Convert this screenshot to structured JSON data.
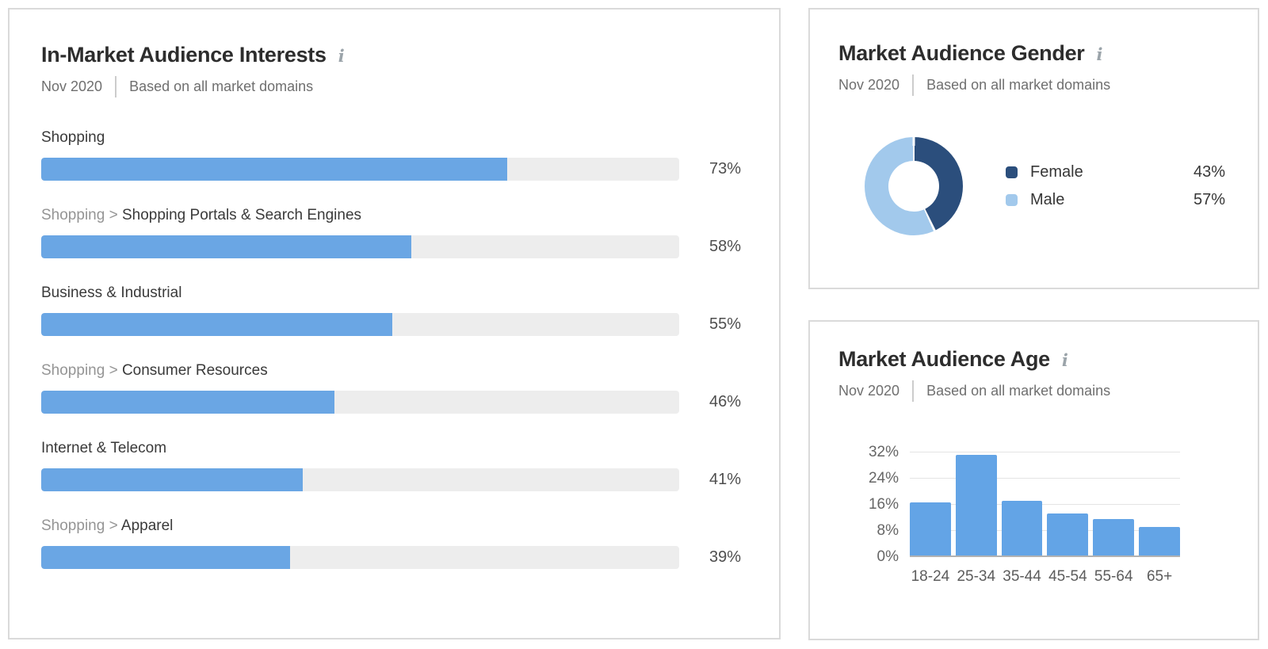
{
  "panels": {
    "interests": {
      "title": "In-Market Audience Interests",
      "date": "Nov 2020",
      "scope": "Based on all market domains",
      "bar_color": "#6aa6e4",
      "track_color": "#ededed",
      "rows": [
        {
          "prefix": "",
          "label": "Shopping",
          "value": 73,
          "display": "73%"
        },
        {
          "prefix": "Shopping > ",
          "label": "Shopping Portals & Search Engines",
          "value": 58,
          "display": "58%"
        },
        {
          "prefix": "",
          "label": "Business & Industrial",
          "value": 55,
          "display": "55%"
        },
        {
          "prefix": "Shopping > ",
          "label": "Consumer Resources",
          "value": 46,
          "display": "46%"
        },
        {
          "prefix": "",
          "label": "Internet & Telecom",
          "value": 41,
          "display": "41%"
        },
        {
          "prefix": "Shopping > ",
          "label": "Apparel",
          "value": 39,
          "display": "39%"
        }
      ]
    },
    "gender": {
      "title": "Market Audience Gender",
      "date": "Nov 2020",
      "scope": "Based on all market domains",
      "legend": [
        {
          "label": "Female",
          "value": 43,
          "display": "43%",
          "color": "#2b4e7c"
        },
        {
          "label": "Male",
          "value": 57,
          "display": "57%",
          "color": "#a2c9ec"
        }
      ]
    },
    "age": {
      "title": "Market Audience Age",
      "date": "Nov 2020",
      "scope": "Based on all market domains",
      "bar_color": "#63a4e6",
      "ymax": 32,
      "yticks": [
        "0%",
        "8%",
        "16%",
        "24%",
        "32%"
      ],
      "categories": [
        "18-24",
        "25-34",
        "35-44",
        "45-54",
        "55-64",
        "65+"
      ],
      "values": [
        16.8,
        31.3,
        17.2,
        13.3,
        11.6,
        9.3
      ]
    }
  },
  "chart_data": [
    {
      "type": "bar",
      "orientation": "horizontal",
      "title": "In-Market Audience Interests",
      "subtitle": "Nov 2020 | Based on all market domains",
      "categories": [
        "Shopping",
        "Shopping > Shopping Portals & Search Engines",
        "Business & Industrial",
        "Shopping > Consumer Resources",
        "Internet & Telecom",
        "Shopping > Apparel"
      ],
      "values": [
        73,
        58,
        55,
        46,
        41,
        39
      ],
      "unit": "%",
      "xlim": [
        0,
        100
      ],
      "bar_color": "#6aa6e4",
      "grid": false,
      "data_labels": [
        "73%",
        "58%",
        "55%",
        "46%",
        "41%",
        "39%"
      ]
    },
    {
      "type": "pie",
      "variant": "donut",
      "title": "Market Audience Gender",
      "subtitle": "Nov 2020 | Based on all market domains",
      "categories": [
        "Female",
        "Male"
      ],
      "values": [
        43,
        57
      ],
      "unit": "%",
      "colors": [
        "#2b4e7c",
        "#a2c9ec"
      ],
      "legend_position": "right",
      "start_angle_deg": 0,
      "direction": "clockwise"
    },
    {
      "type": "bar",
      "orientation": "vertical",
      "title": "Market Audience Age",
      "subtitle": "Nov 2020 | Based on all market domains",
      "categories": [
        "18-24",
        "25-34",
        "35-44",
        "45-54",
        "55-64",
        "65+"
      ],
      "values": [
        16.8,
        31.3,
        17.2,
        13.3,
        11.6,
        9.3
      ],
      "unit": "%",
      "ylim": [
        0,
        32
      ],
      "yticks": [
        "0%",
        "8%",
        "16%",
        "24%",
        "32%"
      ],
      "grid": true,
      "bar_color": "#63a4e6"
    }
  ]
}
